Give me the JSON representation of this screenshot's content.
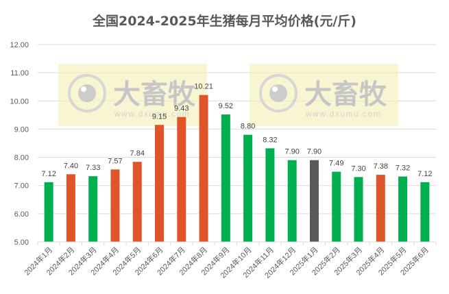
{
  "title": "全国2024-2025年生猪每月平均价格(元/斤)",
  "watermark": {
    "brand": "大畜牧",
    "url": "www.dxumu.com"
  },
  "colors": {
    "green": "#00B050",
    "orange": "#E0542A",
    "gray": "#595959",
    "grid": "#D9D9D9",
    "text": "#595959",
    "watermark_bg": "#F5F0B8"
  },
  "chart_data": {
    "type": "bar",
    "title": "全国2024-2025年生猪每月平均价格(元/斤)",
    "xlabel": "",
    "ylabel": "",
    "ylim": [
      5.0,
      12.0
    ],
    "yticks": [
      "5.00",
      "6.00",
      "7.00",
      "8.00",
      "9.00",
      "10.00",
      "11.00",
      "12.00"
    ],
    "grid": true,
    "legend": null,
    "categories": [
      "2024年1月",
      "2024年2月",
      "2024年3月",
      "2024年4月",
      "2024年5月",
      "2024年6月",
      "2024年7月",
      "2024年8月",
      "2024年9月",
      "2024年10月",
      "2024年11月",
      "2024年12月",
      "2025年1月",
      "2025年2月",
      "2025年3月",
      "2025年4月",
      "2025年5月",
      "2025年6月"
    ],
    "values": [
      7.12,
      7.4,
      7.33,
      7.57,
      7.84,
      9.15,
      9.43,
      10.21,
      9.52,
      8.8,
      8.32,
      7.9,
      7.9,
      7.49,
      7.3,
      7.38,
      7.32,
      7.12
    ],
    "labels": [
      "7.12",
      "7.40",
      "7.33",
      "7.57",
      "7.84",
      "9.15",
      "9.43",
      "10.21",
      "9.52",
      "8.80",
      "8.32",
      "7.90",
      "7.90",
      "7.49",
      "7.30",
      "7.38",
      "7.32",
      "7.12"
    ],
    "bar_colors": [
      "green",
      "orange",
      "green",
      "orange",
      "orange",
      "orange",
      "orange",
      "orange",
      "green",
      "green",
      "green",
      "green",
      "gray",
      "green",
      "green",
      "orange",
      "green",
      "green"
    ]
  }
}
